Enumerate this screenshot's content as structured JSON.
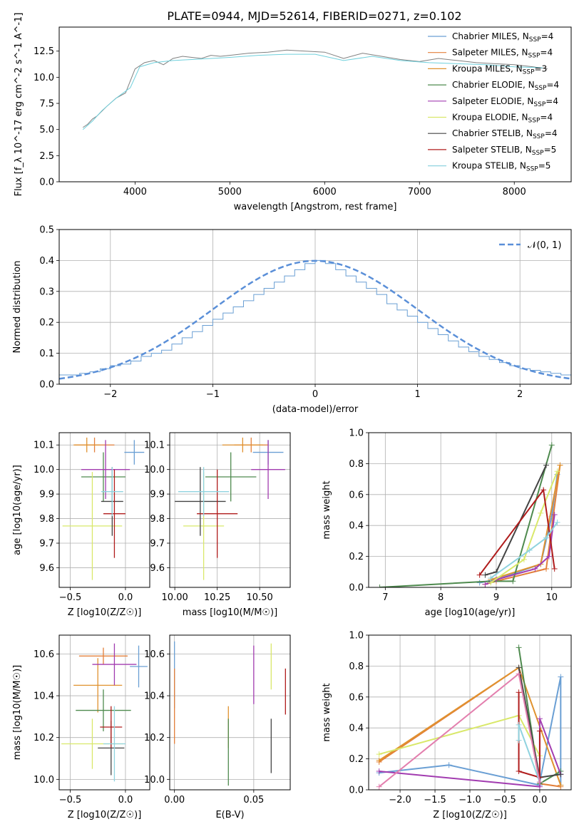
{
  "figure_title": "PLATE=0944, MJD=52614, FIBERID=0271, z=0.102",
  "legend_spectrum": [
    {
      "label": "Chabrier MILES, N",
      "sub": "SSP",
      "suffix": "=4",
      "color": "#6a9fd4"
    },
    {
      "label": "Salpeter MILES, N",
      "sub": "SSP",
      "suffix": "=4",
      "color": "#e37f3a"
    },
    {
      "label": "Kroupa MILES, N",
      "sub": "SSP",
      "suffix": "=3",
      "color": "#e0922f"
    },
    {
      "label": "Chabrier ELODIE, N",
      "sub": "SSP",
      "suffix": "=4",
      "color": "#4e8a4e"
    },
    {
      "label": "Salpeter ELODIE, N",
      "sub": "SSP",
      "suffix": "=4",
      "color": "#a23cb0"
    },
    {
      "label": "Kroupa ELODIE, N",
      "sub": "SSP",
      "suffix": "=4",
      "color": "#d9e86a"
    },
    {
      "label": "Chabrier STELIB, N",
      "sub": "SSP",
      "suffix": "=4",
      "color": "#444444"
    },
    {
      "label": "Salpeter STELIB, N",
      "sub": "SSP",
      "suffix": "=5",
      "color": "#b01c1c"
    },
    {
      "label": "Kroupa STELIB, N",
      "sub": "SSP",
      "suffix": "=5",
      "color": "#8fd3df"
    }
  ],
  "legend_hist": "𝒩(0, 1)",
  "chart_data": [
    {
      "id": "spectrum",
      "type": "line",
      "xlabel": "wavelength [Angstrom, rest frame]",
      "ylabel": "Flux [f_λ 10^-17 erg cm^-2 s^-1 A^-1]",
      "xlim": [
        3200,
        8600
      ],
      "ylim": [
        0,
        14.8
      ],
      "xticks": [
        "4000",
        "5000",
        "6000",
        "7000",
        "8000"
      ],
      "yticks": [
        "0.0",
        "2.5",
        "5.0",
        "7.5",
        "10.0",
        "12.5"
      ],
      "series": [
        {
          "name": "data",
          "x": [
            3450,
            3500,
            3550,
            3600,
            3700,
            3800,
            3900,
            4000,
            4100,
            4200,
            4300,
            4400,
            4500,
            4600,
            4700,
            4800,
            4900,
            5000,
            5200,
            5400,
            5600,
            5800,
            6000,
            6200,
            6400,
            6600,
            6800,
            7000,
            7200,
            7400,
            7600,
            7800,
            8000,
            8200,
            8350
          ],
          "y": [
            5.2,
            5.5,
            6.0,
            6.3,
            7.2,
            8.0,
            8.5,
            10.8,
            11.4,
            11.6,
            11.2,
            11.8,
            12.0,
            11.9,
            11.8,
            12.1,
            12.0,
            12.1,
            12.3,
            12.4,
            12.6,
            12.5,
            12.4,
            11.8,
            12.3,
            12.0,
            11.7,
            11.5,
            11.8,
            11.6,
            11.4,
            11.3,
            11.2,
            11.0,
            10.8
          ]
        },
        {
          "name": "model",
          "x": [
            3450,
            3550,
            3650,
            3800,
            3950,
            4050,
            4200,
            4400,
            4600,
            4800,
            5000,
            5300,
            5600,
            5900,
            6200,
            6500,
            6800,
            7100,
            7400,
            7700,
            8000,
            8300
          ],
          "y": [
            5.0,
            5.8,
            6.8,
            8.0,
            9.0,
            11.0,
            11.4,
            11.6,
            11.7,
            11.8,
            11.9,
            12.1,
            12.2,
            12.2,
            11.6,
            12.0,
            11.6,
            11.4,
            11.3,
            11.2,
            11.0,
            10.9
          ]
        }
      ]
    },
    {
      "id": "residual_hist",
      "type": "histogram",
      "xlabel": "(data-model)/error",
      "ylabel": "Normed distribution",
      "xlim": [
        -2.5,
        2.5
      ],
      "ylim": [
        0,
        0.5
      ],
      "xticks": [
        "−2",
        "−1",
        "0",
        "1",
        "2"
      ],
      "yticks": [
        "0.0",
        "0.1",
        "0.2",
        "0.3",
        "0.4",
        "0.5"
      ],
      "bin_edges_start": -2.5,
      "bin_width": 0.1,
      "heights": [
        0.03,
        0.03,
        0.035,
        0.04,
        0.05,
        0.06,
        0.065,
        0.075,
        0.09,
        0.1,
        0.11,
        0.13,
        0.15,
        0.17,
        0.19,
        0.21,
        0.23,
        0.25,
        0.27,
        0.29,
        0.31,
        0.33,
        0.35,
        0.37,
        0.39,
        0.4,
        0.39,
        0.37,
        0.35,
        0.33,
        0.31,
        0.29,
        0.26,
        0.24,
        0.22,
        0.2,
        0.18,
        0.16,
        0.14,
        0.12,
        0.105,
        0.09,
        0.08,
        0.07,
        0.06,
        0.05,
        0.045,
        0.04,
        0.035,
        0.03
      ]
    },
    {
      "id": "age_vs_Z",
      "type": "errorbar",
      "xlabel": "Z [log10(Z/Z☉)]",
      "ylabel": "age [log10(age/yr)]",
      "xlim": [
        -0.6,
        0.22
      ],
      "ylim": [
        9.52,
        10.15
      ],
      "xticks": [
        "−0.5",
        "0.0"
      ],
      "yticks": [
        "9.6",
        "9.7",
        "9.8",
        "9.9",
        "10.0",
        "10.1"
      ],
      "points": [
        {
          "x": 0.08,
          "y": 10.07,
          "xerr": 0.09,
          "yerr": 0.05
        },
        {
          "x": -0.28,
          "y": 10.1,
          "xerr": 0.18,
          "yerr": 0.03
        },
        {
          "x": -0.35,
          "y": 10.1,
          "xerr": 0.12,
          "yerr": 0.03
        },
        {
          "x": -0.2,
          "y": 9.97,
          "xerr": 0.2,
          "yerr": 0.1
        },
        {
          "x": -0.18,
          "y": 10.0,
          "xerr": 0.22,
          "yerr": 0.12
        },
        {
          "x": -0.3,
          "y": 9.77,
          "xerr": 0.27,
          "yerr": 0.22
        },
        {
          "x": -0.12,
          "y": 9.87,
          "xerr": 0.1,
          "yerr": 0.14
        },
        {
          "x": -0.1,
          "y": 9.82,
          "xerr": 0.1,
          "yerr": 0.18
        },
        {
          "x": -0.12,
          "y": 9.91,
          "xerr": 0.1,
          "yerr": 0.1
        }
      ]
    },
    {
      "id": "age_vs_mass",
      "type": "errorbar",
      "xlabel": "mass [log10(M/M☉)]",
      "ylabel": "",
      "xlim": [
        9.97,
        10.68
      ],
      "ylim": [
        9.52,
        10.15
      ],
      "xticks": [
        "10.00",
        "10.25",
        "10.50"
      ],
      "yticks": [
        "9.6",
        "9.7",
        "9.8",
        "9.9",
        "10.0",
        "10.1"
      ],
      "points": [
        {
          "x": 10.55,
          "y": 10.07,
          "xerr": 0.09,
          "yerr": 0.05
        },
        {
          "x": 10.45,
          "y": 10.1,
          "xerr": 0.1,
          "yerr": 0.03
        },
        {
          "x": 10.4,
          "y": 10.1,
          "xerr": 0.12,
          "yerr": 0.03
        },
        {
          "x": 10.33,
          "y": 9.97,
          "xerr": 0.15,
          "yerr": 0.1
        },
        {
          "x": 10.55,
          "y": 10.0,
          "xerr": 0.1,
          "yerr": 0.12
        },
        {
          "x": 10.17,
          "y": 9.77,
          "xerr": 0.12,
          "yerr": 0.22
        },
        {
          "x": 10.15,
          "y": 9.87,
          "xerr": 0.15,
          "yerr": 0.14
        },
        {
          "x": 10.25,
          "y": 9.82,
          "xerr": 0.12,
          "yerr": 0.18
        },
        {
          "x": 10.17,
          "y": 9.91,
          "xerr": 0.15,
          "yerr": 0.1
        }
      ]
    },
    {
      "id": "weight_vs_age",
      "type": "line",
      "xlabel": "age [log10(age/yr)]",
      "ylabel": "mass weight",
      "xlim": [
        6.7,
        10.35
      ],
      "ylim": [
        0,
        1.0
      ],
      "xticks": [
        "7",
        "8",
        "9",
        "10"
      ],
      "yticks": [
        "0.0",
        "0.2",
        "0.4",
        "0.6",
        "0.8",
        "1.0"
      ],
      "series": [
        {
          "name": "Chabrier MILES",
          "x": [
            8.7,
            9.0,
            9.8,
            10.0,
            10.1
          ],
          "y": [
            0.03,
            0.05,
            0.15,
            0.46,
            0.73
          ]
        },
        {
          "name": "Salpeter MILES",
          "x": [
            8.8,
            9.0,
            9.9,
            10.15
          ],
          "y": [
            0.02,
            0.04,
            0.12,
            0.79
          ]
        },
        {
          "name": "Kroupa MILES",
          "x": [
            8.9,
            9.8,
            10.15
          ],
          "y": [
            0.05,
            0.15,
            0.79
          ]
        },
        {
          "name": "Chabrier ELODIE",
          "x": [
            6.9,
            8.9,
            9.3,
            10.0
          ],
          "y": [
            0.0,
            0.04,
            0.04,
            0.92
          ]
        },
        {
          "name": "Salpeter ELODIE",
          "x": [
            8.8,
            9.0,
            9.7,
            9.95,
            10.05
          ],
          "y": [
            0.02,
            0.05,
            0.12,
            0.2,
            0.47
          ]
        },
        {
          "name": "Kroupa ELODIE",
          "x": [
            8.9,
            9.5,
            9.8,
            10.1
          ],
          "y": [
            0.03,
            0.18,
            0.48,
            0.75
          ]
        },
        {
          "name": "Chabrier STELIB",
          "x": [
            8.8,
            9.0,
            9.9
          ],
          "y": [
            0.08,
            0.1,
            0.79
          ]
        },
        {
          "name": "Salpeter STELIB",
          "x": [
            8.7,
            9.85,
            10.05
          ],
          "y": [
            0.08,
            0.63,
            0.12
          ]
        },
        {
          "name": "Kroupa STELIB",
          "x": [
            8.9,
            9.6,
            9.9,
            10.1
          ],
          "y": [
            0.06,
            0.24,
            0.32,
            0.42
          ]
        }
      ]
    },
    {
      "id": "mass_vs_Z",
      "type": "errorbar",
      "xlabel": "Z [log10(Z/Z☉)]",
      "ylabel": "mass [log10(M/M☉)]",
      "xlim": [
        -0.6,
        0.22
      ],
      "ylim": [
        9.95,
        10.69
      ],
      "xticks": [
        "−0.5",
        "0.0"
      ],
      "yticks": [
        "10.0",
        "10.2",
        "10.4",
        "10.6"
      ],
      "points": [
        {
          "x": 0.12,
          "y": 10.54,
          "xerr": 0.08,
          "yerr": 0.1
        },
        {
          "x": -0.2,
          "y": 10.59,
          "xerr": 0.22,
          "yerr": 0.04
        },
        {
          "x": -0.25,
          "y": 10.45,
          "xerr": 0.22,
          "yerr": 0.13
        },
        {
          "x": -0.2,
          "y": 10.33,
          "xerr": 0.25,
          "yerr": 0.1
        },
        {
          "x": -0.1,
          "y": 10.55,
          "xerr": 0.2,
          "yerr": 0.1
        },
        {
          "x": -0.3,
          "y": 10.17,
          "xerr": 0.28,
          "yerr": 0.12
        },
        {
          "x": -0.13,
          "y": 10.15,
          "xerr": 0.12,
          "yerr": 0.13
        },
        {
          "x": -0.13,
          "y": 10.25,
          "xerr": 0.1,
          "yerr": 0.1
        },
        {
          "x": -0.1,
          "y": 10.17,
          "xerr": 0.1,
          "yerr": 0.18
        }
      ]
    },
    {
      "id": "mass_vs_ebv",
      "type": "errorbar",
      "xlabel": "E(B-V)",
      "ylabel": "",
      "xlim": [
        -0.003,
        0.073
      ],
      "ylim": [
        9.95,
        10.69
      ],
      "xticks": [
        "0.00",
        "0.05"
      ],
      "yticks": [
        "10.0",
        "10.2",
        "10.4",
        "10.6"
      ],
      "points": [
        {
          "x": 0.0,
          "y": 10.5,
          "xerr": 0,
          "yerr": 0.16
        },
        {
          "x": 0.0,
          "y": 10.35,
          "xerr": 0,
          "yerr": 0.18
        },
        {
          "x": 0.034,
          "y": 10.25,
          "xerr": 0,
          "yerr": 0.1
        },
        {
          "x": 0.034,
          "y": 10.13,
          "xerr": 0,
          "yerr": 0.16
        },
        {
          "x": 0.05,
          "y": 10.5,
          "xerr": 0,
          "yerr": 0.14
        },
        {
          "x": 0.061,
          "y": 10.54,
          "xerr": 0,
          "yerr": 0.11
        },
        {
          "x": 0.061,
          "y": 10.16,
          "xerr": 0,
          "yerr": 0.13
        },
        {
          "x": 0.07,
          "y": 10.42,
          "xerr": 0,
          "yerr": 0.11
        }
      ]
    },
    {
      "id": "weight_vs_Z",
      "type": "line",
      "xlabel": "Z [log10(Z/Z☉)]",
      "ylabel": "mass weight",
      "xlim": [
        -2.45,
        0.45
      ],
      "ylim": [
        0,
        1.0
      ],
      "xticks": [
        "−2.0",
        "−1.5",
        "−1.0",
        "−0.5",
        "0.0"
      ],
      "yticks": [
        "0.0",
        "0.2",
        "0.4",
        "0.6",
        "0.8",
        "1.0"
      ],
      "series": [
        {
          "name": "Chabrier MILES",
          "x": [
            -2.3,
            -1.3,
            0.0,
            0.0,
            0.3,
            0.3
          ],
          "y": [
            0.11,
            0.16,
            0.03,
            0.05,
            0.73,
            0.03
          ]
        },
        {
          "name": "Salpeter MILES",
          "x": [
            -2.3,
            -0.3,
            0.0,
            0.3
          ],
          "y": [
            0.18,
            0.79,
            0.04,
            0.02
          ]
        },
        {
          "name": "Kroupa MILES",
          "x": [
            -2.3,
            -0.3,
            0.3
          ],
          "y": [
            0.19,
            0.79,
            0.03
          ]
        },
        {
          "name": "Chabrier ELODIE",
          "x": [
            -0.3,
            0.0,
            0.3
          ],
          "y": [
            0.92,
            0.04,
            0.12
          ]
        },
        {
          "name": "Salpeter ELODIE",
          "x": [
            -2.3,
            0.0,
            0.0,
            0.3
          ],
          "y": [
            0.12,
            0.02,
            0.46,
            0.1
          ]
        },
        {
          "name": "Kroupa ELODIE",
          "x": [
            -2.3,
            -0.3,
            0.0
          ],
          "y": [
            0.23,
            0.48,
            0.22
          ]
        },
        {
          "name": "Chabrier STELIB",
          "x": [
            -0.3,
            0.0,
            0.3
          ],
          "y": [
            0.79,
            0.08,
            0.1
          ]
        },
        {
          "name": "Salpeter STELIB",
          "x": [
            -0.3,
            -0.3,
            0.0,
            0.0
          ],
          "y": [
            0.63,
            0.12,
            0.08,
            0.38
          ]
        },
        {
          "name": "Kroupa STELIB",
          "x": [
            -0.3,
            -0.3,
            0.0
          ],
          "y": [
            0.32,
            0.42,
            0.05
          ]
        },
        {
          "name": "pink",
          "x": [
            -2.3,
            -0.3,
            0.0
          ],
          "y": [
            0.02,
            0.75,
            0.05
          ]
        }
      ]
    }
  ]
}
